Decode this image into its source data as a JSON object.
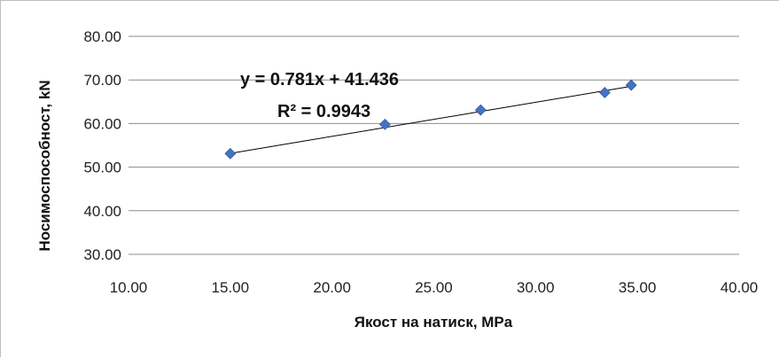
{
  "chart_data": {
    "type": "scatter",
    "xlabel": "Якост на натиск, MPa",
    "ylabel": "Носимоспособност, kN",
    "xlim": [
      10,
      40
    ],
    "ylim": [
      30,
      80
    ],
    "x_ticks": [
      "10.00",
      "15.00",
      "20.00",
      "25.00",
      "30.00",
      "35.00",
      "40.00"
    ],
    "y_ticks": [
      "30.00",
      "40.00",
      "50.00",
      "60.00",
      "70.00",
      "80.00"
    ],
    "grid": "horizontal",
    "series": [
      {
        "x": [
          15.0,
          22.6,
          27.3,
          33.4,
          34.7
        ],
        "y": [
          53.1,
          59.8,
          63.1,
          67.1,
          68.8
        ],
        "marker": "diamond",
        "color": "#4472c4"
      }
    ],
    "trendline": {
      "type": "linear",
      "slope": 0.781,
      "intercept": 41.436,
      "x_range": [
        15.0,
        34.7
      ],
      "color": "#000000"
    },
    "annotations": {
      "equation": "y = 0.781x + 41.436",
      "r_squared": "R² = 0.9943"
    }
  }
}
